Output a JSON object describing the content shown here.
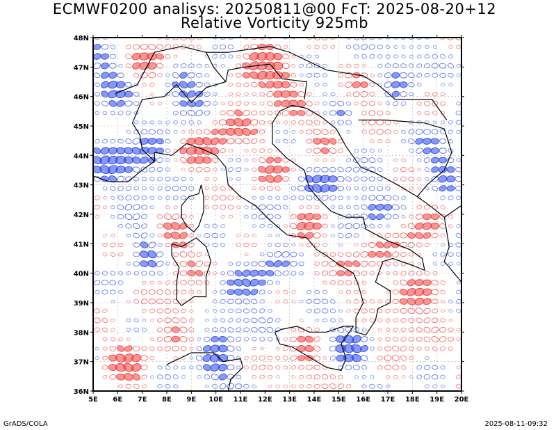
{
  "title_line1": "ECMWF0200 analisys: 20250811@00 FcT: 2025-08-20+12",
  "title_line2": "Relative Vorticity 925mb",
  "footer_left": "GrADS/COLA",
  "footer_right": "2025-08-11-09:32",
  "map": {
    "lon_range": [
      5,
      20
    ],
    "lat_range": [
      36,
      48
    ],
    "lon_ticks": [
      "5E",
      "6E",
      "7E",
      "8E",
      "9E",
      "10E",
      "11E",
      "12E",
      "13E",
      "14E",
      "15E",
      "16E",
      "17E",
      "18E",
      "19E",
      "20E"
    ],
    "lat_ticks": [
      "36N",
      "37N",
      "38N",
      "39N",
      "40N",
      "41N",
      "42N",
      "43N",
      "44N",
      "45N",
      "46N",
      "47N",
      "48N"
    ],
    "colors": {
      "positive": "#f03c3c",
      "negative": "#2846e6",
      "coast": "#000000",
      "grid": "#b0b0b0"
    }
  }
}
